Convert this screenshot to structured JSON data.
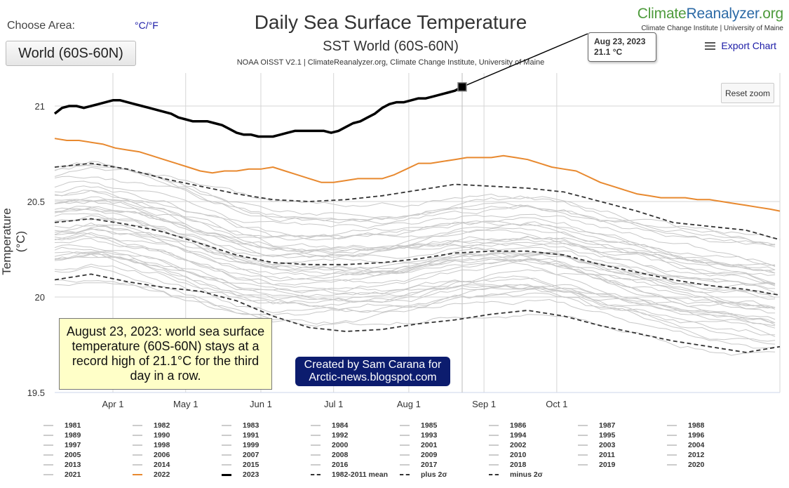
{
  "controls": {
    "choose_area_label": "Choose Area:",
    "unit_toggle": "°C/°F",
    "area_button": "World (60S-60N)",
    "reset_zoom": "Reset zoom",
    "export_chart": "Export Chart"
  },
  "brand": {
    "logo_part1": "Climate",
    "logo_part2": "Reanalyzer",
    "logo_part3": ".org",
    "subtitle": "Climate Change Institute | University of Maine"
  },
  "colors": {
    "logo_green": "#4e9b3c",
    "logo_blue": "#2c6aa6",
    "year_2023": "#000000",
    "year_2022": "#e8892f",
    "other_years": "#c8c8c8",
    "stats_lines": "#333333",
    "annotation_bg": "#ffffc8",
    "credit_bg": "#0c1c6e"
  },
  "tooltip": {
    "date": "Aug 23, 2023",
    "value": "21.1 °C"
  },
  "annotation": "August 23, 2023: world sea surface temperature (60S-60N) stays at a record high of 21.1°C for the third day in a row.",
  "credit": {
    "line1": "Created by Sam Carana for",
    "line2": "Arctic-news.blogspot.com"
  },
  "chart_data": {
    "type": "line",
    "title": "Daily Sea Surface Temperature",
    "subtitle": "SST World (60S-60N)",
    "source": "NOAA OISST V2.1 | ClimateReanalyzer.org, Climate Change Institute, University of Maine",
    "ylabel": "Temperature (°C)",
    "xlabel": "",
    "ylim": [
      19.5,
      21.15
    ],
    "yticks": [
      19.5,
      20,
      20.5,
      21
    ],
    "x_domain_day_of_year": [
      67,
      366
    ],
    "xticks": [
      {
        "label": "Apr 1",
        "day": 91
      },
      {
        "label": "May 1",
        "day": 121
      },
      {
        "label": "Jun 1",
        "day": 152
      },
      {
        "label": "Jul 1",
        "day": 182
      },
      {
        "label": "Aug 1",
        "day": 213
      },
      {
        "label": "Sep 1",
        "day": 244
      },
      {
        "label": "Oct 1",
        "day": 274
      }
    ],
    "grid": true,
    "legend_position": "bottom",
    "highlight": {
      "label": "Aug 23, 2023",
      "day": 235,
      "value": 21.1
    },
    "series": [
      {
        "name": "2023",
        "color": "#000000",
        "width": 3.5,
        "dash": "",
        "x": [
          67,
          70,
          73,
          76,
          79,
          82,
          85,
          88,
          91,
          94,
          97,
          100,
          103,
          106,
          109,
          112,
          115,
          118,
          121,
          124,
          127,
          130,
          133,
          136,
          139,
          142,
          145,
          148,
          151,
          154,
          157,
          160,
          163,
          166,
          169,
          172,
          175,
          178,
          181,
          184,
          187,
          190,
          193,
          196,
          199,
          202,
          205,
          208,
          211,
          214,
          217,
          220,
          223,
          226,
          229,
          232,
          235
        ],
        "values": [
          20.96,
          20.99,
          21.0,
          21.0,
          20.99,
          21.0,
          21.01,
          21.02,
          21.03,
          21.03,
          21.02,
          21.01,
          21.0,
          20.99,
          20.98,
          20.97,
          20.96,
          20.94,
          20.93,
          20.92,
          20.92,
          20.92,
          20.91,
          20.9,
          20.88,
          20.86,
          20.85,
          20.85,
          20.84,
          20.84,
          20.84,
          20.85,
          20.86,
          20.87,
          20.87,
          20.87,
          20.87,
          20.87,
          20.86,
          20.87,
          20.89,
          20.91,
          20.92,
          20.94,
          20.96,
          20.99,
          21.01,
          21.02,
          21.02,
          21.03,
          21.04,
          21.04,
          21.05,
          21.06,
          21.07,
          21.08,
          21.1
        ]
      },
      {
        "name": "2022",
        "color": "#e8892f",
        "width": 2,
        "dash": "",
        "x": [
          67,
          72,
          77,
          82,
          87,
          92,
          97,
          102,
          107,
          112,
          117,
          122,
          127,
          132,
          137,
          142,
          147,
          152,
          157,
          162,
          167,
          172,
          177,
          182,
          187,
          192,
          197,
          202,
          207,
          212,
          217,
          222,
          227,
          232,
          237,
          242,
          247,
          252,
          257,
          262,
          267,
          272,
          277,
          282,
          287,
          292,
          297,
          302,
          307,
          312,
          317,
          322,
          327,
          332,
          337,
          342,
          347,
          352,
          357,
          362,
          366
        ],
        "values": [
          20.83,
          20.82,
          20.82,
          20.81,
          20.8,
          20.78,
          20.77,
          20.76,
          20.74,
          20.72,
          20.7,
          20.68,
          20.66,
          20.65,
          20.66,
          20.66,
          20.67,
          20.67,
          20.68,
          20.66,
          20.64,
          20.62,
          20.6,
          20.6,
          20.61,
          20.62,
          20.62,
          20.62,
          20.64,
          20.67,
          20.7,
          20.7,
          20.71,
          20.72,
          20.73,
          20.73,
          20.73,
          20.74,
          20.73,
          20.72,
          20.7,
          20.68,
          20.67,
          20.66,
          20.63,
          20.6,
          20.58,
          20.56,
          20.54,
          20.53,
          20.52,
          20.52,
          20.52,
          20.51,
          20.51,
          20.5,
          20.49,
          20.48,
          20.47,
          20.46,
          20.45
        ]
      },
      {
        "name": "plus 2σ",
        "color": "#333333",
        "width": 1.8,
        "dash": "6,4",
        "x": [
          67,
          82,
          97,
          112,
          127,
          142,
          157,
          172,
          187,
          202,
          217,
          232,
          247,
          262,
          277,
          292,
          307,
          322,
          337,
          352,
          366
        ],
        "values": [
          20.68,
          20.7,
          20.67,
          20.62,
          20.58,
          20.54,
          20.51,
          20.5,
          20.51,
          20.53,
          20.56,
          20.59,
          20.58,
          20.57,
          20.55,
          20.5,
          20.45,
          20.39,
          20.37,
          20.35,
          20.3
        ]
      },
      {
        "name": "1982-2011 mean",
        "color": "#333333",
        "width": 1.8,
        "dash": "6,4",
        "x": [
          67,
          82,
          97,
          112,
          127,
          142,
          157,
          172,
          187,
          202,
          217,
          232,
          247,
          262,
          277,
          292,
          307,
          322,
          337,
          352,
          366
        ],
        "values": [
          20.39,
          20.41,
          20.38,
          20.34,
          20.28,
          20.22,
          20.18,
          20.17,
          20.17,
          20.18,
          20.2,
          20.23,
          20.24,
          20.24,
          20.22,
          20.17,
          20.13,
          20.09,
          20.06,
          20.04,
          20.01
        ]
      },
      {
        "name": "minus 2σ",
        "color": "#333333",
        "width": 1.8,
        "dash": "6,4",
        "x": [
          67,
          82,
          97,
          112,
          127,
          142,
          157,
          172,
          187,
          202,
          217,
          232,
          247,
          262,
          277,
          292,
          307,
          322,
          337,
          352,
          366
        ],
        "values": [
          20.09,
          20.12,
          20.08,
          20.05,
          20.03,
          19.98,
          19.9,
          19.84,
          19.82,
          19.83,
          19.86,
          19.88,
          19.91,
          19.93,
          19.9,
          19.85,
          19.81,
          19.77,
          19.74,
          19.71,
          19.74
        ]
      }
    ],
    "background_years": [
      "1981",
      "1982",
      "1983",
      "1984",
      "1985",
      "1986",
      "1987",
      "1988",
      "1989",
      "1990",
      "1991",
      "1992",
      "1993",
      "1994",
      "1995",
      "1996",
      "1997",
      "1998",
      "1999",
      "2000",
      "2001",
      "2002",
      "2003",
      "2004",
      "2005",
      "2006",
      "2007",
      "2008",
      "2009",
      "2010",
      "2011",
      "2012",
      "2013",
      "2014",
      "2015",
      "2016",
      "2017",
      "2018",
      "2019",
      "2020",
      "2021"
    ]
  },
  "legend": [
    {
      "label": "1981",
      "type": "year"
    },
    {
      "label": "1982",
      "type": "year"
    },
    {
      "label": "1983",
      "type": "year"
    },
    {
      "label": "1984",
      "type": "year"
    },
    {
      "label": "1985",
      "type": "year"
    },
    {
      "label": "1986",
      "type": "year"
    },
    {
      "label": "1987",
      "type": "year"
    },
    {
      "label": "1988",
      "type": "year"
    },
    {
      "label": "1989",
      "type": "year"
    },
    {
      "label": "1990",
      "type": "year"
    },
    {
      "label": "1991",
      "type": "year"
    },
    {
      "label": "1992",
      "type": "year"
    },
    {
      "label": "1993",
      "type": "year"
    },
    {
      "label": "1994",
      "type": "year"
    },
    {
      "label": "1995",
      "type": "year"
    },
    {
      "label": "1996",
      "type": "year"
    },
    {
      "label": "1997",
      "type": "year"
    },
    {
      "label": "1998",
      "type": "year"
    },
    {
      "label": "1999",
      "type": "year"
    },
    {
      "label": "2000",
      "type": "year"
    },
    {
      "label": "2001",
      "type": "year"
    },
    {
      "label": "2002",
      "type": "year"
    },
    {
      "label": "2003",
      "type": "year"
    },
    {
      "label": "2004",
      "type": "year"
    },
    {
      "label": "2005",
      "type": "year"
    },
    {
      "label": "2006",
      "type": "year"
    },
    {
      "label": "2007",
      "type": "year"
    },
    {
      "label": "2008",
      "type": "year"
    },
    {
      "label": "2009",
      "type": "year"
    },
    {
      "label": "2010",
      "type": "year"
    },
    {
      "label": "2011",
      "type": "year"
    },
    {
      "label": "2012",
      "type": "year"
    },
    {
      "label": "2013",
      "type": "year"
    },
    {
      "label": "2014",
      "type": "year"
    },
    {
      "label": "2015",
      "type": "year"
    },
    {
      "label": "2016",
      "type": "year"
    },
    {
      "label": "2017",
      "type": "year"
    },
    {
      "label": "2018",
      "type": "year"
    },
    {
      "label": "2019",
      "type": "year"
    },
    {
      "label": "2020",
      "type": "year"
    },
    {
      "label": "2021",
      "type": "year"
    },
    {
      "label": "2022",
      "type": "y2022"
    },
    {
      "label": "2023",
      "type": "y2023"
    },
    {
      "label": "1982-2011 mean",
      "type": "stat"
    },
    {
      "label": "plus 2σ",
      "type": "stat"
    },
    {
      "label": "minus 2σ",
      "type": "stat"
    }
  ]
}
